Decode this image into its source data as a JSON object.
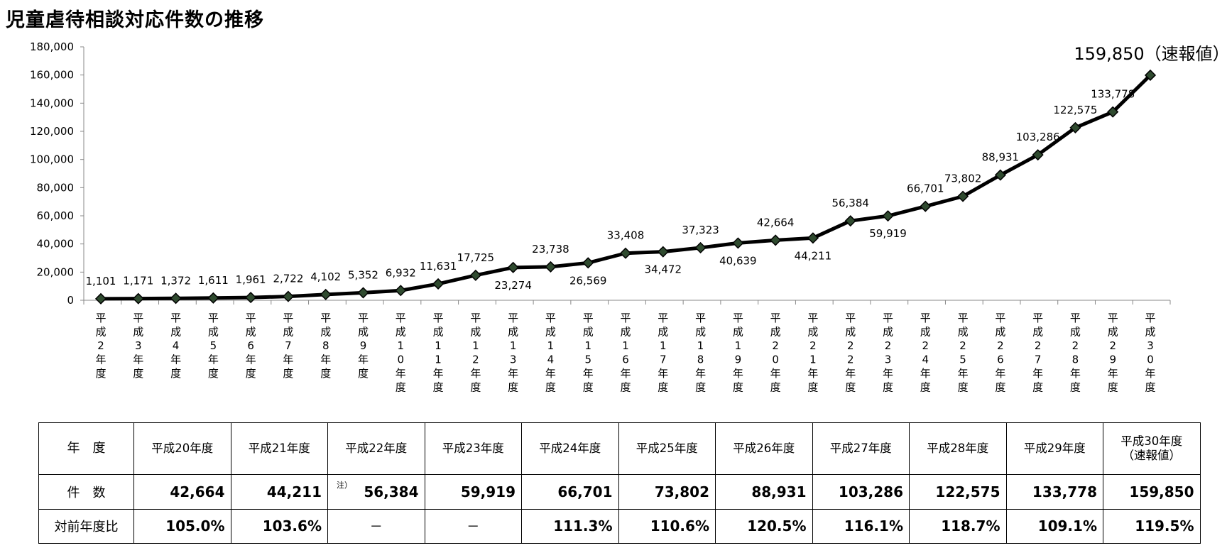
{
  "title": "児童虐待相談対応件数の推移",
  "chart_data": {
    "type": "line",
    "y_ticks": [
      "180,000",
      "160,000",
      "140,000",
      "120,000",
      "100,000",
      "80,000",
      "60,000",
      "40,000",
      "20,000",
      "0"
    ],
    "ylim": [
      0,
      180000
    ],
    "grid": false,
    "legend": false,
    "categories": [
      "平成2年度",
      "平成3年度",
      "平成4年度",
      "平成5年度",
      "平成6年度",
      "平成7年度",
      "平成8年度",
      "平成9年度",
      "平成10年度",
      "平成11年度",
      "平成12年度",
      "平成13年度",
      "平成14年度",
      "平成15年度",
      "平成16年度",
      "平成17年度",
      "平成18年度",
      "平成19年度",
      "平成20年度",
      "平成21年度",
      "平成22年度",
      "平成23年度",
      "平成24年度",
      "平成25年度",
      "平成26年度",
      "平成27年度",
      "平成28年度",
      "平成29年度",
      "平成30年度"
    ],
    "values": [
      1101,
      1171,
      1372,
      1611,
      1961,
      2722,
      4102,
      5352,
      6932,
      11631,
      17725,
      23274,
      23738,
      26569,
      33408,
      34472,
      37323,
      40639,
      42664,
      44211,
      56384,
      59919,
      66701,
      73802,
      88931,
      103286,
      122575,
      133778,
      159850
    ],
    "data_labels": [
      "1,101",
      "1,171",
      "1,372",
      "1,611",
      "1,961",
      "2,722",
      "4,102",
      "5,352",
      "6,932",
      "11,631",
      "17,725",
      "23,274",
      "23,738",
      "26,569",
      "33,408",
      "34,472",
      "37,323",
      "40,639",
      "42,664",
      "44,211",
      "56,384",
      "59,919",
      "66,701",
      "73,802",
      "88,931",
      "103,286",
      "122,575",
      "133,778",
      "159,850（速報値）"
    ],
    "label_above": [
      true,
      true,
      true,
      true,
      true,
      true,
      true,
      true,
      true,
      true,
      true,
      false,
      true,
      false,
      true,
      false,
      true,
      false,
      true,
      false,
      true,
      false,
      true,
      true,
      true,
      true,
      true,
      true,
      true
    ],
    "line_color": "#000000",
    "marker_color": "#2f4a2f"
  },
  "table": {
    "headers": [
      "年　度",
      "平成20年度",
      "平成21年度",
      "平成22年度",
      "平成23年度",
      "平成24年度",
      "平成25年度",
      "平成26年度",
      "平成27年度",
      "平成28年度",
      "平成29年度",
      "平成30年度"
    ],
    "last_header_note": "（速報値）",
    "count_label": "件　数",
    "counts": [
      "42,664",
      "44,211",
      "56,384",
      "59,919",
      "66,701",
      "73,802",
      "88,931",
      "103,286",
      "122,575",
      "133,778",
      "159,850"
    ],
    "note_mark": "注）",
    "ratio_label": "対前年度比",
    "ratios": [
      "105.0%",
      "103.6%",
      "－",
      "－",
      "111.3%",
      "110.6%",
      "120.5%",
      "116.1%",
      "118.7%",
      "109.1%",
      "119.5%"
    ]
  }
}
